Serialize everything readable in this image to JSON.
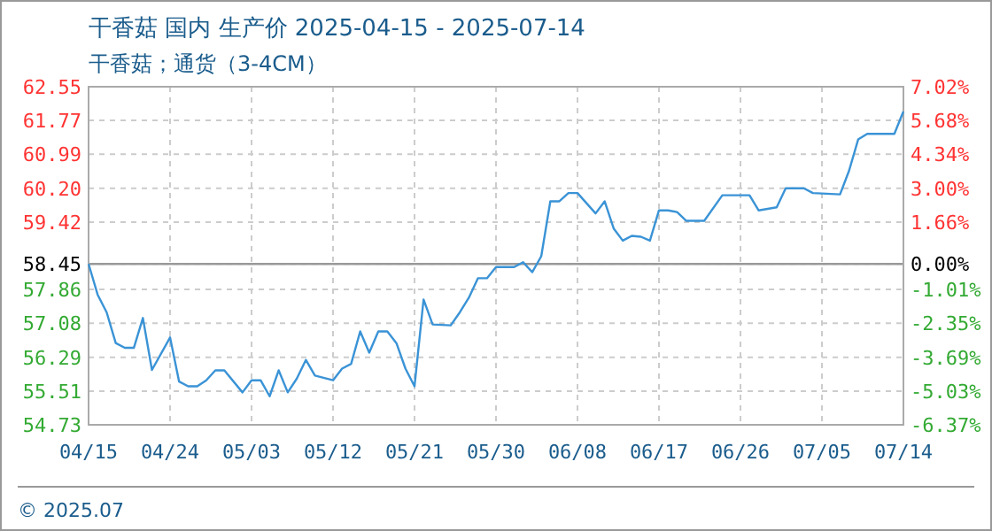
{
  "chart_data": {
    "type": "line",
    "title": "干香菇 国内 生产价 2025-04-15 - 2025-07-14",
    "subtitle": "干香菇；通货（3-4CM）",
    "annotations": [
      "© 2025.07"
    ],
    "x": [
      "2025-04-15",
      "2025-04-16",
      "2025-04-17",
      "2025-04-18",
      "2025-04-19",
      "2025-04-20",
      "2025-04-21",
      "2025-04-22",
      "2025-04-24",
      "2025-04-25",
      "2025-04-26",
      "2025-04-27",
      "2025-04-28",
      "2025-04-29",
      "2025-04-30",
      "2025-05-02",
      "2025-05-03",
      "2025-05-04",
      "2025-05-05",
      "2025-05-06",
      "2025-05-07",
      "2025-05-08",
      "2025-05-09",
      "2025-05-10",
      "2025-05-12",
      "2025-05-13",
      "2025-05-14",
      "2025-05-15",
      "2025-05-16",
      "2025-05-17",
      "2025-05-18",
      "2025-05-19",
      "2025-05-20",
      "2025-05-21",
      "2025-05-22",
      "2025-05-23",
      "2025-05-25",
      "2025-05-26",
      "2025-05-27",
      "2025-05-28",
      "2025-05-29",
      "2025-05-30",
      "2025-06-01",
      "2025-06-02",
      "2025-06-03",
      "2025-06-04",
      "2025-06-05",
      "2025-06-06",
      "2025-06-07",
      "2025-06-08",
      "2025-06-10",
      "2025-06-11",
      "2025-06-12",
      "2025-06-13",
      "2025-06-14",
      "2025-06-15",
      "2025-06-16",
      "2025-06-17",
      "2025-06-18",
      "2025-06-19",
      "2025-06-20",
      "2025-06-22",
      "2025-06-24",
      "2025-06-27",
      "2025-06-28",
      "2025-06-30",
      "2025-07-01",
      "2025-07-03",
      "2025-07-04",
      "2025-07-07",
      "2025-07-08",
      "2025-07-09",
      "2025-07-10",
      "2025-07-13",
      "2025-07-14"
    ],
    "series": [
      {
        "color": "#3a93d6",
        "values": [
          58.45,
          57.74,
          57.33,
          56.62,
          56.51,
          56.51,
          57.2,
          56.0,
          56.75,
          55.73,
          55.62,
          55.62,
          55.76,
          55.99,
          55.99,
          55.48,
          55.76,
          55.76,
          55.39,
          55.99,
          55.48,
          55.8,
          56.23,
          55.87,
          55.76,
          56.03,
          56.14,
          56.89,
          56.4,
          56.89,
          56.89,
          56.62,
          56.03,
          55.62,
          57.63,
          57.05,
          57.03,
          57.33,
          57.67,
          58.12,
          58.12,
          58.38,
          58.38,
          58.49,
          58.26,
          58.63,
          59.9,
          59.9,
          60.09,
          60.09,
          59.62,
          59.9,
          59.27,
          58.99,
          59.1,
          59.08,
          58.99,
          59.69,
          59.69,
          59.65,
          59.45,
          59.45,
          60.04,
          60.04,
          59.69,
          59.76,
          60.2,
          60.2,
          60.09,
          60.06,
          60.61,
          61.33,
          61.46,
          61.46,
          61.98
        ]
      }
    ],
    "xlim": [
      "2025-04-15",
      "2025-07-14"
    ],
    "xticks": [
      {
        "value": "2025-04-15",
        "label": "04/15"
      },
      {
        "value": "2025-04-24",
        "label": "04/24"
      },
      {
        "value": "2025-05-03",
        "label": "05/03"
      },
      {
        "value": "2025-05-12",
        "label": "05/12"
      },
      {
        "value": "2025-05-21",
        "label": "05/21"
      },
      {
        "value": "2025-05-30",
        "label": "05/30"
      },
      {
        "value": "2025-06-08",
        "label": "06/08"
      },
      {
        "value": "2025-06-17",
        "label": "06/17"
      },
      {
        "value": "2025-06-26",
        "label": "06/26"
      },
      {
        "value": "2025-07-05",
        "label": "07/05"
      },
      {
        "value": "2025-07-14",
        "label": "07/14"
      }
    ],
    "ylim": [
      54.73,
      62.55
    ],
    "yticks": [
      54.73,
      55.51,
      56.29,
      57.08,
      57.86,
      58.45,
      59.42,
      {
        "value": 60.2,
        "label": "60.20"
      },
      60.99,
      61.77,
      62.55
    ],
    "y2lim": [
      -6.37,
      7.02
    ],
    "y2ticks": [
      {
        "value": -6.37,
        "label": "-6.37%"
      },
      {
        "value": -5.03,
        "label": "-5.03%"
      },
      {
        "value": -3.69,
        "label": "-3.69%"
      },
      {
        "value": -2.35,
        "label": "-2.35%"
      },
      {
        "value": -1.01,
        "label": "-1.01%"
      },
      {
        "value": 0,
        "label": "0.00%"
      },
      {
        "value": 1.66,
        "label": "1.66%"
      },
      {
        "value": 3.0,
        "label": "3.00%"
      },
      {
        "value": 4.34,
        "label": "4.34%"
      },
      {
        "value": 5.68,
        "label": "5.68%"
      },
      {
        "value": 7.02,
        "label": "7.02%"
      }
    ],
    "ref_lines": [
      {
        "axis": "y",
        "value": 58.45,
        "color": "#999999"
      }
    ],
    "grid": true,
    "line_style": "solid"
  }
}
